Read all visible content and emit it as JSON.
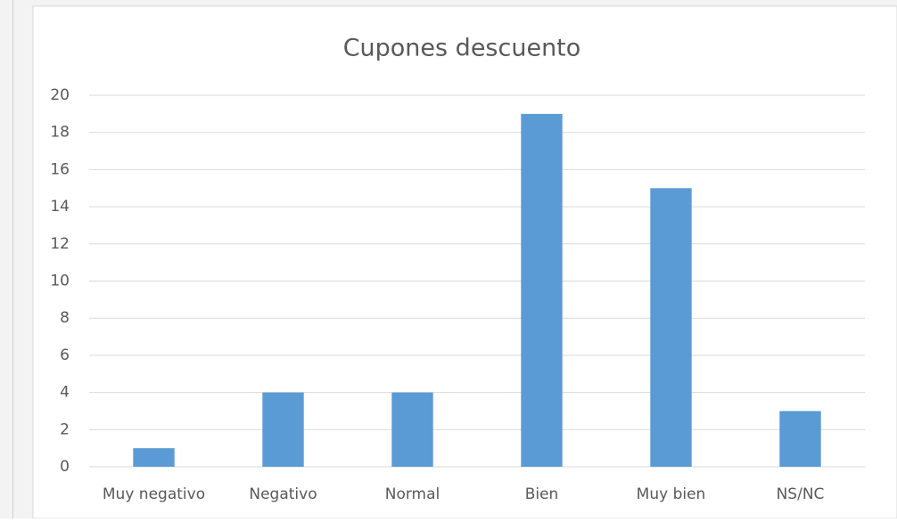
{
  "chart_data": {
    "type": "bar",
    "title": "Cupones descuento",
    "categories": [
      "Muy negativo",
      "Negativo",
      "Normal",
      "Bien",
      "Muy bien",
      "NS/NC"
    ],
    "values": [
      1,
      4,
      4,
      19,
      15,
      3
    ],
    "color": "#5b9bd5",
    "ylim": [
      0,
      20
    ],
    "yticks": [
      0,
      2,
      4,
      6,
      8,
      10,
      12,
      14,
      16,
      18,
      20
    ],
    "grid": true
  }
}
